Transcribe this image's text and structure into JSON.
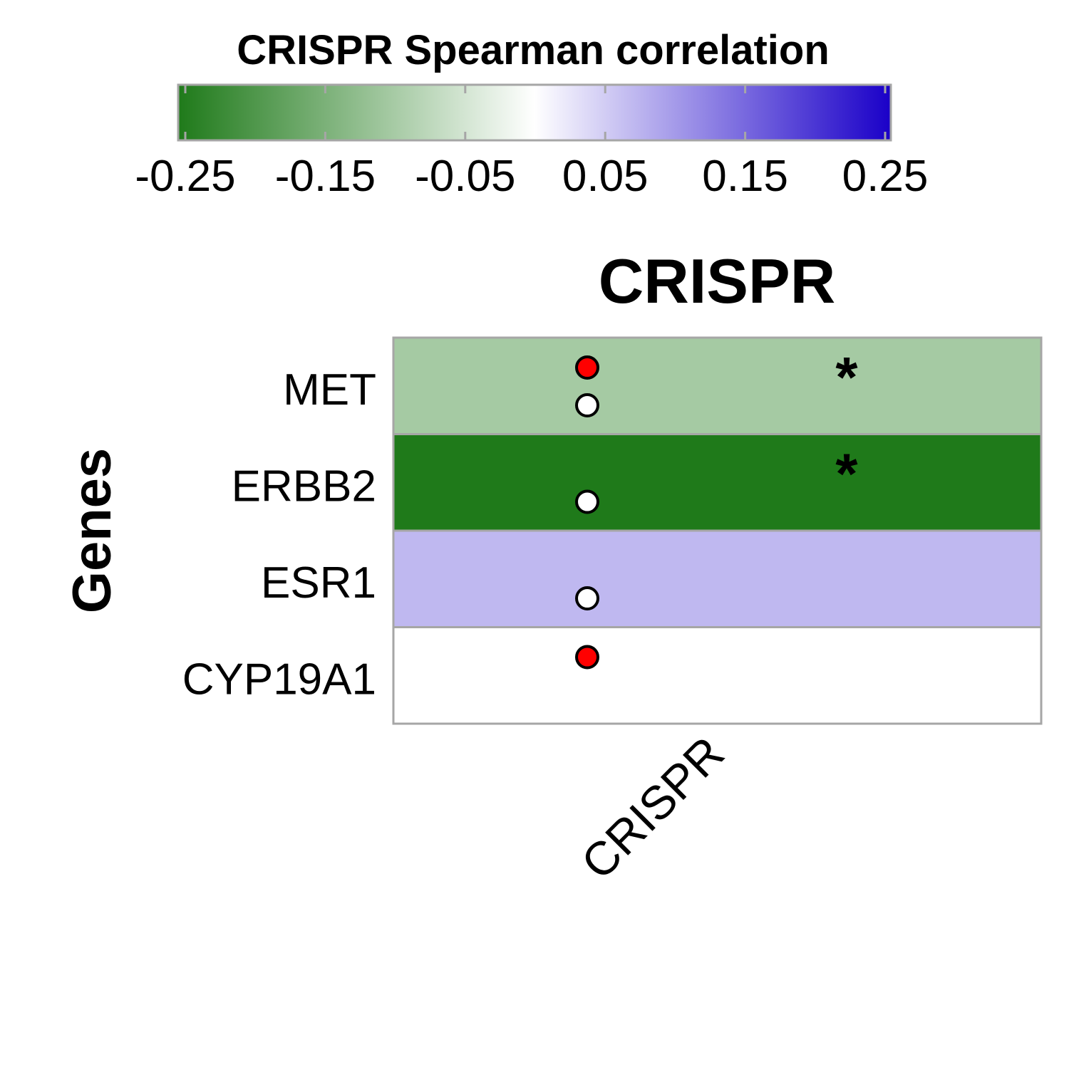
{
  "chart_data": {
    "type": "heatmap",
    "title": "CRISPR",
    "xlabel": "",
    "ylabel": "Genes",
    "x_categories": [
      "CRISPR"
    ],
    "y_categories": [
      "MET",
      "ERBB2",
      "ESR1",
      "CYP19A1"
    ],
    "values": [
      -0.1,
      -0.25,
      0.07,
      0.0
    ],
    "significance": [
      "*",
      "*",
      "",
      ""
    ],
    "markers": [
      [
        "#ff0000",
        "#ffffff"
      ],
      [
        "",
        "#ffffff"
      ],
      [
        "",
        "#ffffff"
      ],
      [
        "#ff0000",
        ""
      ]
    ],
    "colorbar": {
      "title": "CRISPR Spearman correlation",
      "range": [
        -0.25,
        0.25
      ],
      "ticks": [
        -0.25,
        -0.15,
        -0.05,
        0.05,
        0.15,
        0.25
      ],
      "tick_labels": [
        "-0.25",
        "-0.15",
        "-0.05",
        "0.05",
        "0.15",
        "0.25"
      ],
      "low_color": "#1f7a1a",
      "mid_color": "#ffffff",
      "high_color": "#1a00c8"
    },
    "grid": false,
    "legend": "top"
  }
}
